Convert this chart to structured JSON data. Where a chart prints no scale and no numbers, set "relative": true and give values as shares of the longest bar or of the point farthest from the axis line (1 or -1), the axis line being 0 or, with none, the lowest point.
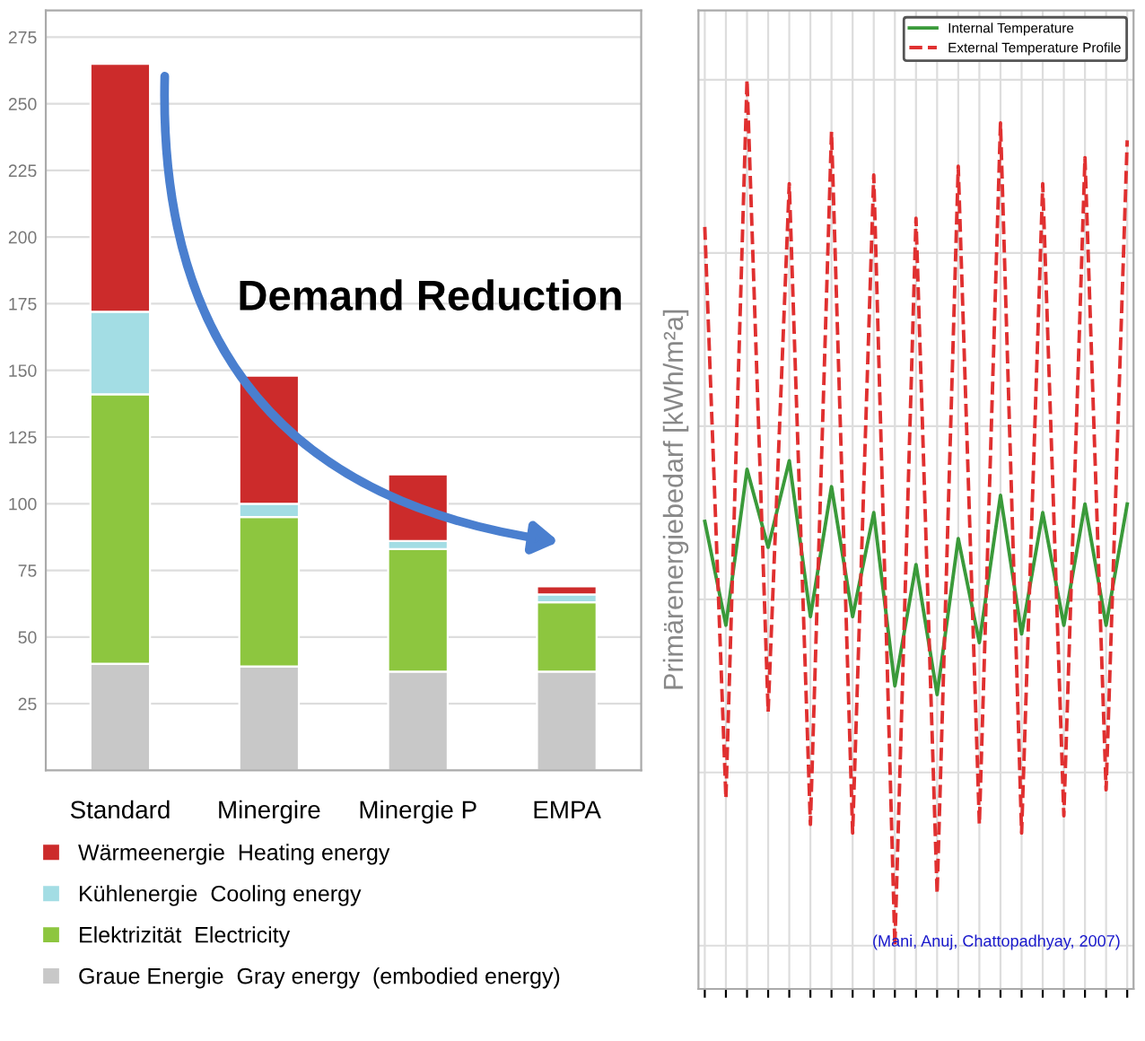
{
  "chart_data": [
    {
      "type": "bar",
      "stacked": true,
      "categories": [
        "Standard",
        "Minergire",
        "Minergie P",
        "EMPA"
      ],
      "series": [
        {
          "name": "Graue Energie  Gray energy  (embodied energy)",
          "color": "#c8c8c8",
          "values": [
            40,
            39,
            37,
            37
          ]
        },
        {
          "name": "Elektrizität  Electricity",
          "color": "#8dc63f",
          "values": [
            101,
            56,
            46,
            26
          ]
        },
        {
          "name": "Kühlenergie  Cooling energy",
          "color": "#a3dde4",
          "values": [
            31,
            5,
            3,
            3
          ]
        },
        {
          "name": "Wärmeenergie  Heating energy",
          "color": "#cc2b2b",
          "values": [
            93,
            48,
            25,
            3
          ]
        }
      ],
      "ylim": [
        0,
        285
      ],
      "yticks": [
        25,
        50,
        75,
        100,
        125,
        150,
        175,
        200,
        225,
        250,
        275
      ],
      "grid": "y",
      "legend": "bottom",
      "annotations": [
        "Demand Reduction"
      ]
    },
    {
      "type": "line",
      "relative": true,
      "ylabel": "Primärenergiebedarf [kWh/m²a]",
      "grid": true,
      "legend": "top right",
      "categories": [
        null,
        null,
        null,
        null,
        null,
        null,
        null,
        null,
        null,
        null,
        null,
        null,
        null,
        null,
        null,
        null,
        null,
        null,
        null,
        null,
        null
      ],
      "series": [
        {
          "name": "Internal Temperature",
          "color": "#3a9a3a",
          "line_style": "solid",
          "values": [
            0.49,
            0.37,
            0.55,
            0.46,
            0.56,
            0.38,
            0.53,
            0.38,
            0.5,
            0.3,
            0.44,
            0.29,
            0.47,
            0.35,
            0.52,
            0.36,
            0.5,
            0.37,
            0.51,
            0.37,
            0.51
          ]
        },
        {
          "name": "External Temperature Profile",
          "color": "#e03030",
          "line_style": "dashed",
          "values": [
            0.83,
            0.17,
            1.0,
            0.27,
            0.88,
            0.14,
            0.94,
            0.13,
            0.89,
            0,
            0.84,
            0.06,
            0.9,
            0.14,
            0.95,
            0.13,
            0.88,
            0.15,
            0.91,
            0.18,
            0.93
          ]
        }
      ],
      "annotations": [
        "(Mani, Anuj, Chattopadhyay, 2007)"
      ]
    }
  ]
}
